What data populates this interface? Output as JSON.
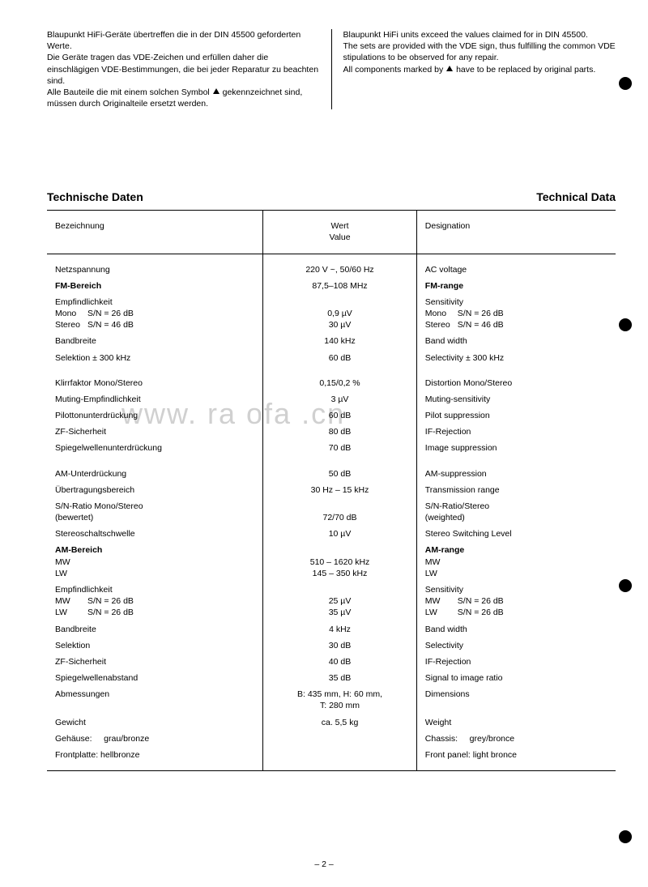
{
  "intro": {
    "de": {
      "p1": "Blaupunkt HiFi-Geräte übertreffen die in der DIN 45500 geforderten Werte.",
      "p2": "Die Geräte tragen das VDE-Zeichen und erfüllen daher die einschlägigen VDE-Bestimmungen, die bei jeder Reparatur zu beachten sind.",
      "p3a": "Alle Bauteile die mit einem solchen Symbol ",
      "p3b": " gekennzeichnet sind, müssen durch Originalteile ersetzt werden."
    },
    "en": {
      "p1": "Blaupunkt HiFi units exceed the values claimed for in DIN 45500.",
      "p2": "The sets are provided with the VDE sign, thus fulfilling the common VDE stipulations to be observed for any repair.",
      "p3a": "All components marked by ",
      "p3b": " have to be replaced by original parts."
    }
  },
  "headings": {
    "de": "Technische Daten",
    "en": "Technical Data"
  },
  "table": {
    "head": {
      "c1": "Bezeichnung",
      "c2a": "Wert",
      "c2b": "Value",
      "c3": "Designation"
    },
    "rows": [
      {
        "c1": "Netzspannung",
        "c2": "220 V ~, 50/60 Hz",
        "c3": "AC voltage"
      },
      {
        "c1": "FM-Bereich",
        "c2": "87,5–108 MHz",
        "c3": "FM-range",
        "bold": true
      },
      {
        "c1": "Empfindlichkeit",
        "s1a": "Mono",
        "s1a2": "S/N = 26 dB",
        "s1b": "Stereo",
        "s1b2": "S/N = 46 dB",
        "c2a": "0,9 µV",
        "c2b": "30  µV",
        "c3": "Sensitivity",
        "s3a": "Mono",
        "s3a2": "S/N = 26 dB",
        "s3b": "Stereo",
        "s3b2": "S/N = 46 dB",
        "multi": true
      },
      {
        "c1": "Bandbreite",
        "c2": "140 kHz",
        "c3": "Band width"
      },
      {
        "c1": "Selektion ± 300 kHz",
        "c2": "60 dB",
        "c3": "Selectivity ± 300 kHz",
        "gap": true
      },
      {
        "c1": "Klirrfaktor Mono/Stereo",
        "c2": "0,15/0,2 %",
        "c3": "Distortion Mono/Stereo"
      },
      {
        "c1": "Muting-Empfindlichkeit",
        "c2": "3 µV",
        "c3": "Muting-sensitivity"
      },
      {
        "c1": "Pilottonunterdrückung",
        "c2": "60 dB",
        "c3": "Pilot suppression"
      },
      {
        "c1": "ZF-Sicherheit",
        "c2": "80 dB",
        "c3": "IF-Rejection"
      },
      {
        "c1": "Spiegelwellenunterdrückung",
        "c2": "70 dB",
        "c3": "Image suppression",
        "gap": true
      },
      {
        "c1": "AM-Unterdrückung",
        "c2": "50 dB",
        "c3": "AM-suppression"
      },
      {
        "c1": "Übertragungsbereich",
        "c2": "30 Hz – 15 kHz",
        "c3": "Transmission range"
      },
      {
        "c1": "S/N-Ratio Mono/Stereo",
        "s1": "(bewertet)",
        "c2": "72/70 dB",
        "c3": "S/N-Ratio/Stereo",
        "s3": "(weighted)",
        "twoLine": true
      },
      {
        "c1": "Stereoschaltschwelle",
        "c2": "10 µV",
        "c3": "Stereo Switching Level"
      },
      {
        "c1": "AM-Bereich",
        "s1a": "MW",
        "s1b": "LW",
        "c2a": "510 – 1620 kHz",
        "c2b": "145 –   350 kHz",
        "c3": "AM-range",
        "s3a": "MW",
        "s3b": "LW",
        "boldHead": true,
        "multiSimple": true
      },
      {
        "c1": "Empfindlichkeit",
        "s1a": "MW",
        "s1a2": "S/N = 26 dB",
        "s1b": "LW",
        "s1b2": "S/N = 26 dB",
        "c2a": "25 µV",
        "c2b": "35 µV",
        "c3": "Sensitivity",
        "s3a": "MW",
        "s3a2": "S/N = 26 dB",
        "s3b": "LW",
        "s3b2": "S/N = 26 dB",
        "multi": true
      },
      {
        "c1": "Bandbreite",
        "c2": "4 kHz",
        "c3": "Band width"
      },
      {
        "c1": "Selektion",
        "c2": "30 dB",
        "c3": "Selectivity"
      },
      {
        "c1": "ZF-Sicherheit",
        "c2": "40 dB",
        "c3": "IF-Rejection"
      },
      {
        "c1": "Spiegelwellenabstand",
        "c2": "35 dB",
        "c3": "Signal to image ratio"
      },
      {
        "c1": "Abmessungen",
        "c2": "B: 435 mm, H: 60 mm,",
        "c2b": "T: 280 mm",
        "c3": "Dimensions",
        "twoLineVal": true
      },
      {
        "c1": "Gewicht",
        "c2": "ca. 5,5 kg",
        "c3": "Weight"
      },
      {
        "c1a": "Gehäuse:",
        "c1b": "grau/bronze",
        "c3a": "Chassis:",
        "c3b": "grey/bronce",
        "split": true
      },
      {
        "c1": "Frontplatte: hellbronze",
        "c3": "Front panel: light bronce"
      }
    ]
  },
  "dots": [
    95,
    393,
    715,
    1025
  ],
  "pagenum": "– 2 –",
  "watermark": "www.  ra    ofa    .cn"
}
